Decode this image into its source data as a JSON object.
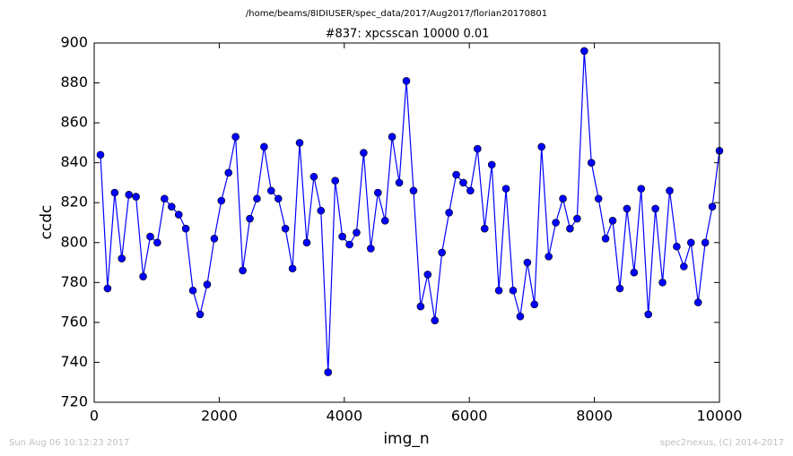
{
  "chart_data": {
    "type": "line",
    "suptitle": "/home/beams/8IDIUSER/spec_data/2017/Aug2017/florian20170801",
    "title": "#837: xpcsscan 10000 0.01",
    "xlabel": "img_n",
    "ylabel": "ccdc",
    "footer_left": "Sun Aug 06 10:12:23 2017",
    "footer_right": "spec2nexus, (C) 2014-2017",
    "color": "#0000ff",
    "x": [
      100,
      214,
      328,
      441,
      555,
      669,
      783,
      897,
      1010,
      1124,
      1238,
      1352,
      1465,
      1579,
      1693,
      1807,
      1921,
      2034,
      2148,
      2262,
      2376,
      2490,
      2603,
      2717,
      2831,
      2945,
      3058,
      3172,
      3286,
      3400,
      3514,
      3627,
      3741,
      3855,
      3969,
      4083,
      4196,
      4310,
      4424,
      4538,
      4652,
      4765,
      4879,
      4993,
      5107,
      5221,
      5334,
      5448,
      5562,
      5676,
      5790,
      5903,
      6017,
      6131,
      6245,
      6359,
      6472,
      6586,
      6700,
      6814,
      6928,
      7041,
      7155,
      7269,
      7383,
      7497,
      7610,
      7724,
      7838,
      7952,
      8066,
      8179,
      8293,
      8407,
      8521,
      8635,
      8748,
      8862,
      8976,
      9090,
      9204,
      9317,
      9431,
      9545,
      9659,
      9773,
      9886,
      10000
    ],
    "values": [
      844,
      777,
      825,
      792,
      824,
      823,
      783,
      803,
      800,
      822,
      818,
      814,
      807,
      776,
      764,
      779,
      802,
      821,
      835,
      853,
      786,
      812,
      822,
      848,
      826,
      822,
      807,
      787,
      850,
      800,
      833,
      816,
      735,
      831,
      803,
      799,
      805,
      845,
      797,
      825,
      811,
      853,
      830,
      881,
      826,
      768,
      784,
      761,
      795,
      815,
      834,
      830,
      826,
      847,
      807,
      839,
      776,
      827,
      776,
      763,
      790,
      769,
      848,
      793,
      810,
      822,
      807,
      812,
      896,
      840,
      822,
      802,
      811,
      777,
      817,
      785,
      827,
      764,
      817,
      780,
      826,
      798,
      788,
      800,
      770,
      800,
      818,
      846
    ],
    "xlim": [
      0,
      10000
    ],
    "xticks": [
      0,
      2000,
      4000,
      6000,
      8000,
      10000
    ],
    "ylim": [
      720,
      900
    ],
    "yticks": [
      720,
      740,
      760,
      780,
      800,
      820,
      840,
      860,
      880,
      900
    ],
    "grid": false
  }
}
